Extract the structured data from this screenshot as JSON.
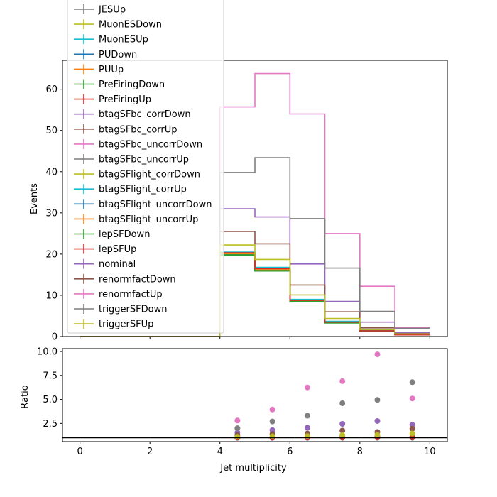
{
  "chart_data": [
    {
      "type": "line",
      "panel": "top",
      "style": "step histogram",
      "xlabel": "",
      "ylabel": "Events",
      "xlim": [
        -0.5,
        10.5
      ],
      "ylim": [
        0,
        67
      ],
      "x_ticks": [
        0,
        2,
        4,
        6,
        8,
        10
      ],
      "y_ticks": [
        0,
        10,
        20,
        30,
        40,
        50,
        60
      ],
      "bin_edges": [
        0,
        1,
        2,
        3,
        4,
        5,
        6,
        7,
        8,
        9,
        10
      ],
      "legend_position": "upper-left",
      "legend_entries": [
        "JESUp",
        "MuonESDown",
        "MuonESUp",
        "PUDown",
        "PUUp",
        "PreFiringDown",
        "PreFiringUp",
        "btagSFbc_corrDown",
        "btagSFbc_corrUp",
        "btagSFbc_uncorrDown",
        "btagSFbc_uncorrUp",
        "btagSFlight_corrDown",
        "btagSFlight_corrUp",
        "btagSFlight_uncorrDown",
        "btagSFlight_uncorrUp",
        "lepSFDown",
        "lepSFUp",
        "nominal",
        "renormfactDown",
        "renormfactUp",
        "triggerSFDown",
        "triggerSFUp"
      ],
      "series": [
        {
          "name": "JESUp",
          "color": "#7f7f7f",
          "values": [
            0,
            0,
            0,
            0,
            20.0,
            16.2,
            8.6,
            3.4,
            1.3,
            0.4
          ]
        },
        {
          "name": "MuonESDown",
          "color": "#bcbd22",
          "values": [
            0,
            0,
            0,
            0,
            20.0,
            16.2,
            8.6,
            3.4,
            1.3,
            0.4
          ]
        },
        {
          "name": "MuonESUp",
          "color": "#17becf",
          "values": [
            0,
            0,
            0,
            0,
            20.1,
            16.3,
            8.7,
            3.5,
            1.3,
            0.4
          ]
        },
        {
          "name": "PUDown",
          "color": "#1f77b4",
          "values": [
            0,
            0,
            0,
            0,
            20.3,
            16.4,
            8.7,
            3.5,
            1.4,
            0.4
          ]
        },
        {
          "name": "PUUp",
          "color": "#ff7f0e",
          "values": [
            0,
            0,
            0,
            0,
            19.8,
            16.1,
            8.5,
            3.4,
            1.3,
            0.4
          ]
        },
        {
          "name": "PreFiringDown",
          "color": "#2ca02c",
          "values": [
            0,
            0,
            0,
            0,
            19.7,
            15.9,
            8.4,
            3.3,
            1.3,
            0.4
          ]
        },
        {
          "name": "PreFiringUp",
          "color": "#d62728",
          "values": [
            0,
            0,
            0,
            0,
            20.2,
            16.3,
            8.7,
            3.5,
            1.3,
            0.4
          ]
        },
        {
          "name": "btagSFbc_corrDown",
          "color": "#9467bd",
          "values": [
            0,
            0,
            0,
            0,
            20.4,
            16.4,
            8.8,
            3.5,
            1.4,
            0.4
          ]
        },
        {
          "name": "btagSFbc_corrUp",
          "color": "#8c564b",
          "values": [
            0,
            0,
            0,
            0,
            20.0,
            16.1,
            8.6,
            3.4,
            1.3,
            0.4
          ]
        },
        {
          "name": "btagSFbc_uncorrDown",
          "color": "#e377c2",
          "values": [
            0,
            0,
            0,
            0,
            19.9,
            16.1,
            8.5,
            3.4,
            1.3,
            0.4
          ]
        },
        {
          "name": "btagSFbc_uncorrUp",
          "color": "#7f7f7f",
          "values": [
            0,
            0,
            0,
            0,
            20.1,
            16.3,
            8.6,
            3.4,
            1.3,
            0.4
          ]
        },
        {
          "name": "btagSFlight_corrDown",
          "color": "#bcbd22",
          "values": [
            0,
            0,
            0,
            0,
            20.2,
            16.3,
            8.7,
            3.5,
            1.3,
            0.4
          ]
        },
        {
          "name": "btagSFlight_corrUp",
          "color": "#17becf",
          "values": [
            0,
            0,
            0,
            0,
            20.5,
            16.8,
            9.0,
            3.7,
            1.5,
            0.5
          ]
        },
        {
          "name": "btagSFlight_uncorrDown",
          "color": "#1f77b4",
          "values": [
            0,
            0,
            0,
            0,
            20.0,
            16.2,
            8.6,
            3.4,
            1.3,
            0.4
          ]
        },
        {
          "name": "btagSFlight_uncorrUp",
          "color": "#ff7f0e",
          "values": [
            0,
            0,
            0,
            0,
            20.1,
            16.2,
            8.6,
            3.4,
            1.3,
            0.4
          ]
        },
        {
          "name": "lepSFDown",
          "color": "#2ca02c",
          "values": [
            0,
            0,
            0,
            0,
            19.8,
            16.0,
            8.5,
            3.3,
            1.3,
            0.4
          ]
        },
        {
          "name": "lepSFUp",
          "color": "#d62728",
          "values": [
            0,
            0,
            0,
            0,
            20.3,
            16.5,
            8.8,
            3.5,
            1.4,
            0.4
          ]
        },
        {
          "name": "nominal",
          "color": "#9467bd",
          "values": [
            0,
            0,
            0,
            0,
            31.0,
            29.0,
            17.6,
            8.5,
            3.5,
            1.0
          ]
        },
        {
          "name": "renormfactDown",
          "color": "#8c564b",
          "values": [
            0,
            0,
            0,
            0,
            25.5,
            22.5,
            12.5,
            6.0,
            2.1,
            0.7
          ]
        },
        {
          "name": "renormfactUp",
          "color": "#e377c2",
          "values": [
            0,
            0,
            0,
            0,
            55.7,
            63.8,
            54.0,
            25.0,
            12.2,
            2.2
          ]
        },
        {
          "name": "triggerSFDown",
          "color": "#7f7f7f",
          "values": [
            0,
            0,
            0,
            0,
            39.8,
            43.4,
            28.6,
            16.6,
            6.1,
            2.0
          ]
        },
        {
          "name": "triggerSFUp",
          "color": "#bcbd22",
          "values": [
            0,
            0,
            0,
            0,
            22.2,
            18.7,
            10.1,
            4.4,
            1.7,
            0.6
          ]
        }
      ]
    },
    {
      "type": "scatter",
      "panel": "bottom",
      "xlabel": "Jet multiplicity",
      "ylabel": "Ratio",
      "xlim": [
        -0.5,
        10.5
      ],
      "ylim": [
        0.6,
        10.3
      ],
      "x_ticks": [
        0,
        2,
        4,
        6,
        8,
        10
      ],
      "y_ticks": [
        2.5,
        5.0,
        7.5,
        10.0
      ],
      "reference_line": 1.0,
      "x": [
        4.5,
        5.5,
        6.5,
        7.5,
        8.5,
        9.5
      ],
      "series": [
        {
          "name": "JESUp",
          "color": "#7f7f7f",
          "values": [
            1.0,
            1.0,
            1.0,
            1.0,
            1.0,
            1.0
          ]
        },
        {
          "name": "PUDown",
          "color": "#1f77b4",
          "values": [
            1.02,
            1.01,
            1.01,
            1.03,
            1.05,
            1.05
          ]
        },
        {
          "name": "btagSFlight_corrUp",
          "color": "#17becf",
          "values": [
            1.03,
            1.04,
            1.05,
            1.09,
            1.12,
            1.15
          ]
        },
        {
          "name": "lepSFUp",
          "color": "#d62728",
          "values": [
            1.02,
            1.02,
            1.02,
            1.03,
            1.04,
            1.05
          ]
        },
        {
          "name": "nominal",
          "color": "#9467bd",
          "values": [
            1.55,
            1.8,
            2.05,
            2.45,
            2.75,
            2.35
          ]
        },
        {
          "name": "renormfactDown",
          "color": "#8c564b",
          "values": [
            1.28,
            1.4,
            1.45,
            1.75,
            1.6,
            1.95
          ]
        },
        {
          "name": "renormfactUp",
          "color": "#e377c2",
          "values": [
            2.8,
            3.95,
            6.25,
            6.9,
            9.7,
            5.1
          ]
        },
        {
          "name": "triggerSFDown",
          "color": "#7f7f7f",
          "values": [
            2.0,
            2.7,
            3.3,
            4.6,
            4.95,
            6.8
          ]
        },
        {
          "name": "triggerSFUp",
          "color": "#bcbd22",
          "values": [
            1.1,
            1.15,
            1.17,
            1.28,
            1.3,
            1.45
          ]
        }
      ]
    }
  ]
}
